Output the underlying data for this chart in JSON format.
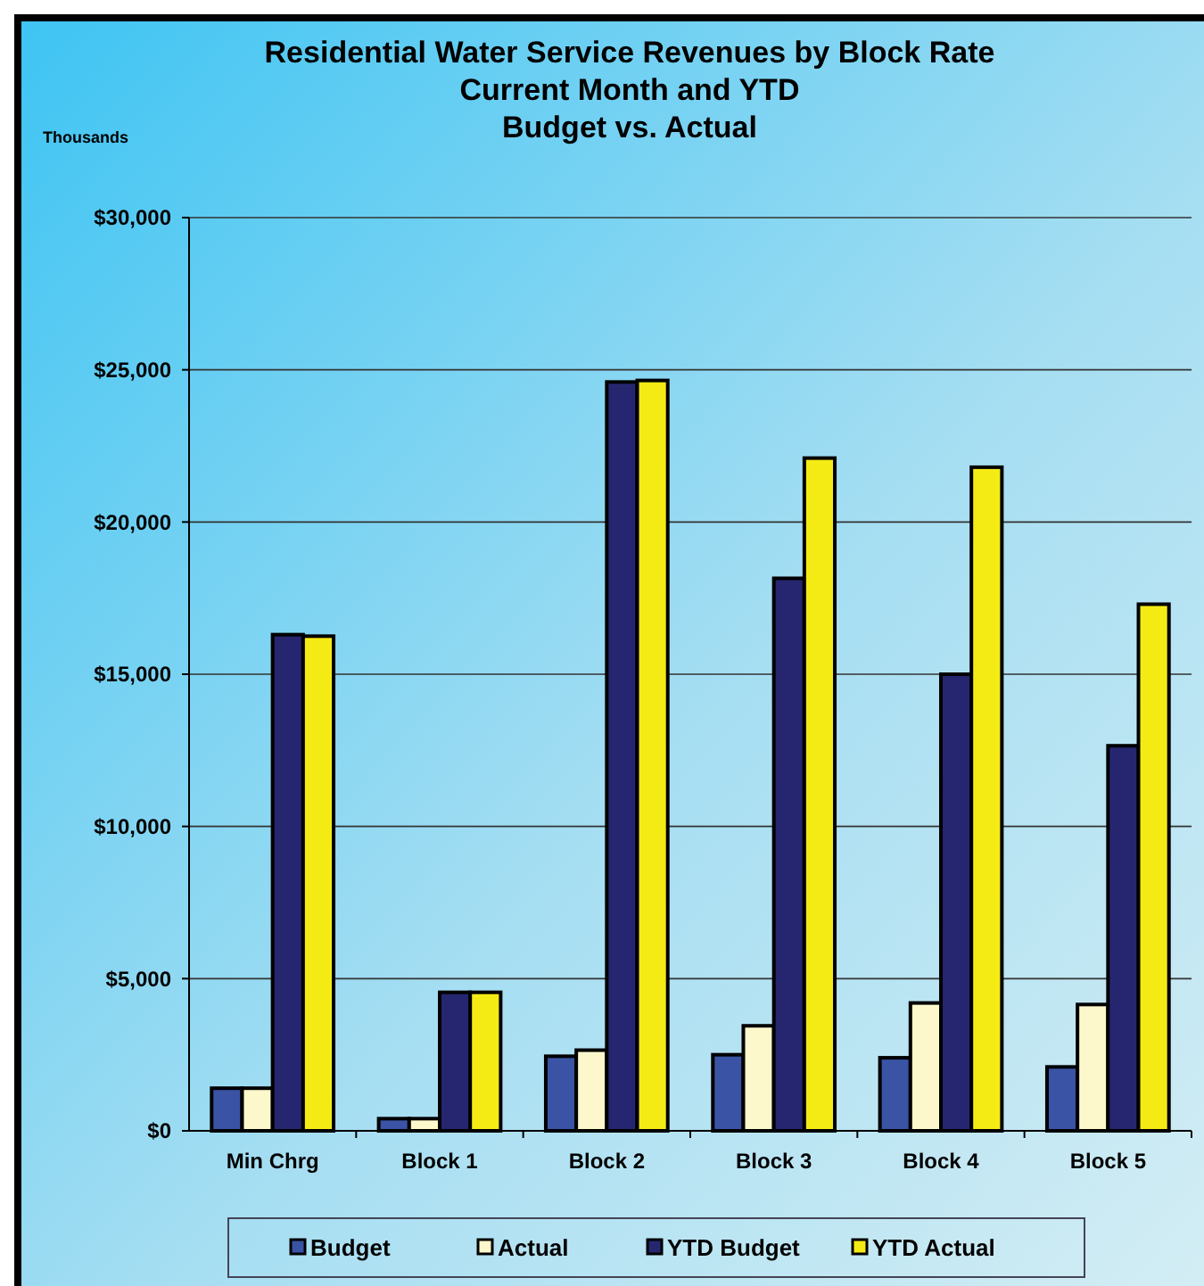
{
  "chart_data": {
    "type": "bar",
    "title": "Residential Water Service Revenues  by Block Rate\nCurrent Month and YTD\nBudget vs. Actual",
    "ylabel": "Thousands",
    "categories": [
      "Min Chrg",
      "Block 1",
      "Block 2",
      "Block 3",
      "Block 4",
      "Block 5"
    ],
    "series": [
      {
        "name": "Budget",
        "color": "#3a53a4",
        "values": [
          1400,
          400,
          2450,
          2500,
          2400,
          2100
        ]
      },
      {
        "name": "Actual",
        "color": "#fdf8cc",
        "values": [
          1400,
          400,
          2650,
          3450,
          4200,
          4150
        ]
      },
      {
        "name": "YTD Budget",
        "color": "#262670",
        "values": [
          16300,
          4550,
          24600,
          18150,
          15000,
          12650
        ]
      },
      {
        "name": "YTD Actual",
        "color": "#f5eb14",
        "values": [
          16250,
          4550,
          24650,
          22100,
          21800,
          17300
        ]
      }
    ],
    "ylim": [
      0,
      30000
    ],
    "yticks": [
      {
        "value": 0,
        "label": "$0"
      },
      {
        "value": 5000,
        "label": "$5,000"
      },
      {
        "value": 10000,
        "label": "$10,000"
      },
      {
        "value": 15000,
        "label": "$15,000"
      },
      {
        "value": 20000,
        "label": "$20,000"
      },
      {
        "value": 25000,
        "label": "$25,000"
      },
      {
        "value": 30000,
        "label": "$30,000"
      }
    ],
    "grid": "y",
    "legend": "bottom"
  }
}
